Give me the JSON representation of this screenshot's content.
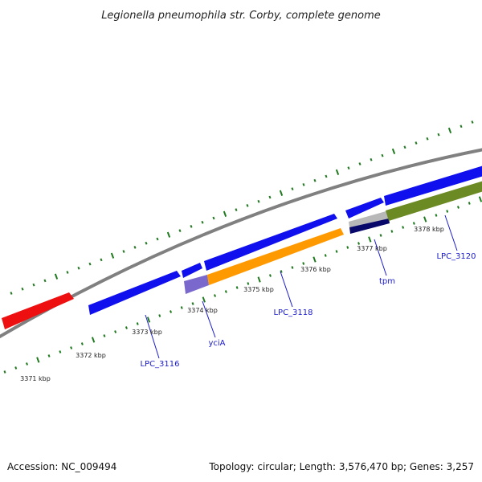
{
  "title": "Legionella pneumophila str. Corby, complete genome",
  "footer": {
    "accession": "Accession: NC_009494",
    "topology": "Topology: circular; Length: 3,576,470 bp; Genes: 3,257"
  },
  "colors": {
    "ticks": "#1f7a1f",
    "backbone": "#808080",
    "label_leader": "#1a1acc",
    "gene_blue": "#1010ee",
    "gene_red": "#ee1010",
    "gene_orange": "#ff9900",
    "gene_olive": "#6b8a23",
    "gene_lavender": "#7b68cc",
    "gene_navy": "#08086b",
    "gene_grey": "#b8b8b8"
  },
  "tick_labels": [
    "3371 kbp",
    "3372 kbp",
    "3373 kbp",
    "3374 kbp",
    "3375 kbp",
    "3376 kbp",
    "3377 kbp",
    "3378 kbp"
  ],
  "gene_labels": [
    "LPC_3116",
    "yciA",
    "LPC_3118",
    "tpm",
    "LPC_3120"
  ]
}
